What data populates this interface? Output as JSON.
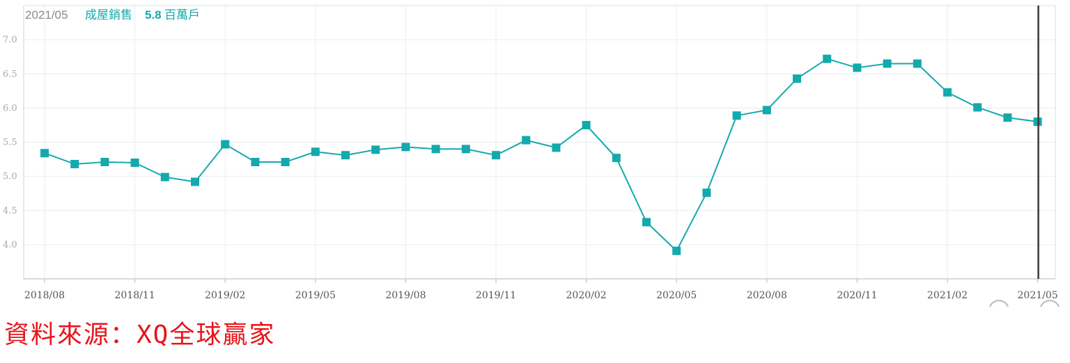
{
  "header": {
    "date": "2021/05",
    "label": "成屋銷售",
    "value": "5.8",
    "unit": "百萬戶"
  },
  "source_note": "資料來源：XQ全球贏家",
  "colors": {
    "series": "#13a9ad",
    "grid": "#e6eef2",
    "cursor": "#3a3a3a",
    "source": "#e8141a"
  },
  "chart_data": {
    "type": "line",
    "title": "",
    "xlabel": "",
    "ylabel": "",
    "ylim": [
      3.5,
      7.5
    ],
    "yticks": [
      "4.0",
      "4.5",
      "5.0",
      "5.5",
      "6.0",
      "6.5",
      "7.0"
    ],
    "xtick_labels": [
      "2018/08",
      "2018/11",
      "2019/02",
      "2019/05",
      "2019/08",
      "2019/11",
      "2020/02",
      "2020/05",
      "2020/08",
      "2020/11",
      "2021/02",
      "2021/05"
    ],
    "grid": true,
    "legend": "none",
    "marker": "square",
    "series": [
      {
        "x": [
          "2018/08",
          "2018/09",
          "2018/10",
          "2018/11",
          "2018/12",
          "2019/01",
          "2019/02",
          "2019/03",
          "2019/04",
          "2019/05",
          "2019/06",
          "2019/07",
          "2019/08",
          "2019/09",
          "2019/10",
          "2019/11",
          "2019/12",
          "2020/01",
          "2020/02",
          "2020/03",
          "2020/04",
          "2020/05",
          "2020/06",
          "2020/07",
          "2020/08",
          "2020/09",
          "2020/10",
          "2020/11",
          "2020/12",
          "2021/01",
          "2021/02",
          "2021/03",
          "2021/04",
          "2021/05"
        ],
        "values": [
          5.34,
          5.18,
          5.21,
          5.2,
          4.99,
          4.92,
          5.47,
          5.21,
          5.21,
          5.36,
          5.31,
          5.39,
          5.43,
          5.4,
          5.4,
          5.31,
          5.53,
          5.42,
          5.75,
          5.27,
          4.33,
          3.91,
          4.76,
          5.89,
          5.97,
          6.43,
          6.72,
          6.59,
          6.65,
          6.65,
          6.23,
          6.01,
          5.86,
          5.8
        ]
      }
    ],
    "cursor": "2021/05"
  }
}
